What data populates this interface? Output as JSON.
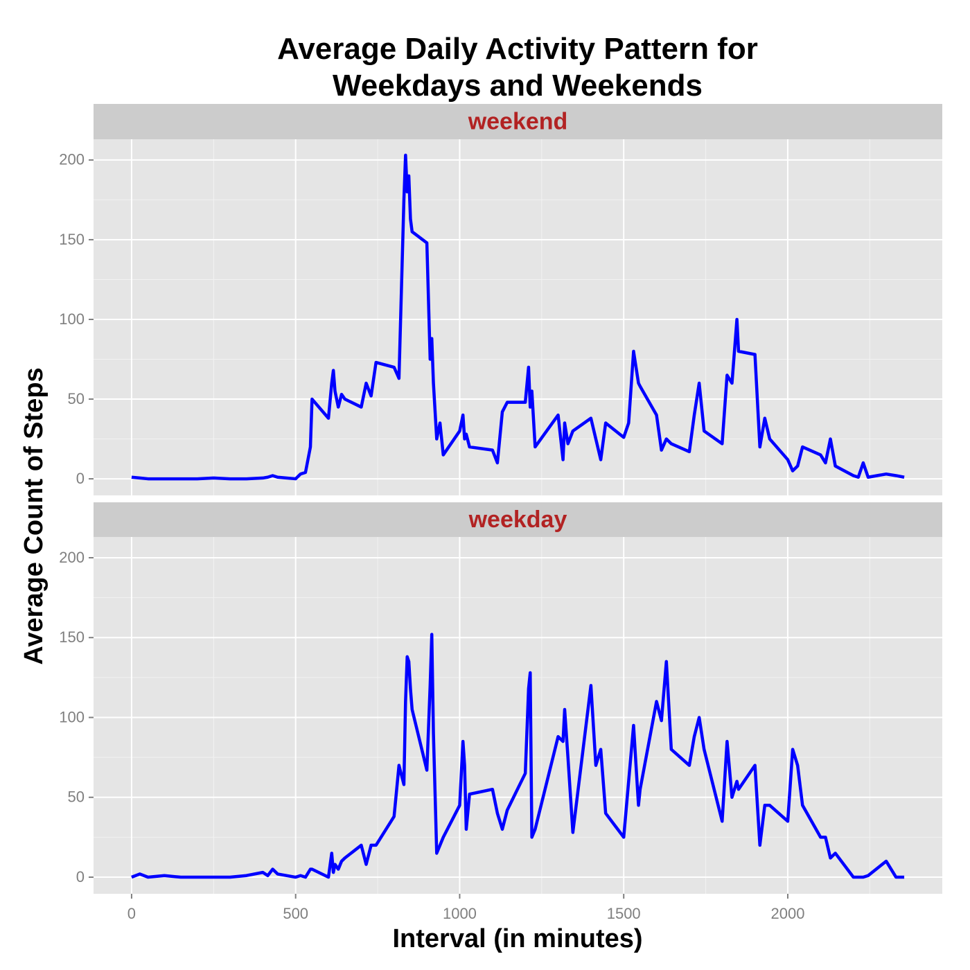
{
  "chart_data": {
    "type": "line",
    "title": "Average Daily Activity Pattern for Weekdays and Weekends",
    "xlabel": "Interval (in minutes)",
    "ylabel": "Average Count of Steps",
    "x": [
      0,
      25,
      50,
      100,
      150,
      200,
      250,
      300,
      350,
      400,
      415,
      430,
      445,
      500,
      515,
      530,
      545,
      550,
      600,
      610,
      615,
      620,
      630,
      640,
      650,
      700,
      715,
      730,
      745,
      800,
      815,
      830,
      835,
      840,
      845,
      850,
      855,
      900,
      910,
      915,
      920,
      930,
      940,
      950,
      1000,
      1010,
      1015,
      1020,
      1030,
      1100,
      1115,
      1130,
      1145,
      1200,
      1210,
      1215,
      1220,
      1230,
      1300,
      1315,
      1320,
      1330,
      1345,
      1400,
      1415,
      1430,
      1445,
      1500,
      1515,
      1530,
      1545,
      1550,
      1600,
      1615,
      1630,
      1645,
      1700,
      1715,
      1730,
      1745,
      1800,
      1815,
      1830,
      1845,
      1850,
      1900,
      1915,
      1930,
      1945,
      2000,
      2015,
      2030,
      2045,
      2100,
      2115,
      2130,
      2145,
      2200,
      2215,
      2230,
      2245,
      2300,
      2330,
      2355
    ],
    "series": [
      {
        "name": "weekend",
        "color": "#0000ff",
        "values": [
          1,
          0.5,
          0,
          0,
          0,
          0,
          0.5,
          0,
          0,
          0.5,
          1,
          2,
          1,
          0,
          3,
          4,
          20,
          50,
          38,
          60,
          68,
          55,
          45,
          53,
          50,
          45,
          60,
          52,
          73,
          70,
          63,
          175,
          203,
          180,
          190,
          163,
          155,
          148,
          75,
          88,
          60,
          25,
          35,
          15,
          30,
          40,
          25,
          28,
          20,
          18,
          10,
          42,
          48,
          48,
          70,
          45,
          55,
          20,
          40,
          12,
          35,
          22,
          30,
          38,
          25,
          12,
          35,
          26,
          35,
          80,
          60,
          58,
          40,
          18,
          25,
          22,
          17,
          40,
          60,
          30,
          22,
          65,
          60,
          100,
          80,
          78,
          20,
          38,
          25,
          12,
          5,
          8,
          20,
          15,
          10,
          25,
          8,
          2,
          1,
          10,
          1,
          3,
          2,
          1
        ]
      },
      {
        "name": "weekday",
        "color": "#0000ff",
        "values": [
          0,
          2,
          0,
          1,
          0,
          0,
          0,
          0,
          1,
          3,
          1,
          5,
          2,
          0,
          1,
          0,
          5,
          5,
          0,
          15,
          3,
          8,
          5,
          10,
          12,
          20,
          8,
          20,
          20,
          38,
          70,
          58,
          110,
          138,
          135,
          118,
          105,
          67,
          120,
          152,
          90,
          15,
          20,
          25,
          45,
          85,
          70,
          30,
          52,
          55,
          40,
          30,
          42,
          65,
          118,
          128,
          25,
          30,
          88,
          85,
          105,
          75,
          28,
          120,
          70,
          80,
          40,
          25,
          60,
          95,
          45,
          55,
          110,
          98,
          135,
          80,
          70,
          88,
          100,
          80,
          35,
          85,
          50,
          60,
          55,
          70,
          20,
          45,
          45,
          35,
          80,
          70,
          45,
          25,
          25,
          12,
          15,
          0,
          0,
          0,
          1,
          10,
          0,
          0
        ]
      }
    ],
    "xlim": [
      -116,
      2471
    ],
    "xticks": [
      0,
      500,
      1000,
      1500,
      2000
    ],
    "ylim": [
      -10.4,
      213
    ],
    "yticks": [
      0,
      50,
      100,
      150,
      200
    ],
    "grid": true
  }
}
